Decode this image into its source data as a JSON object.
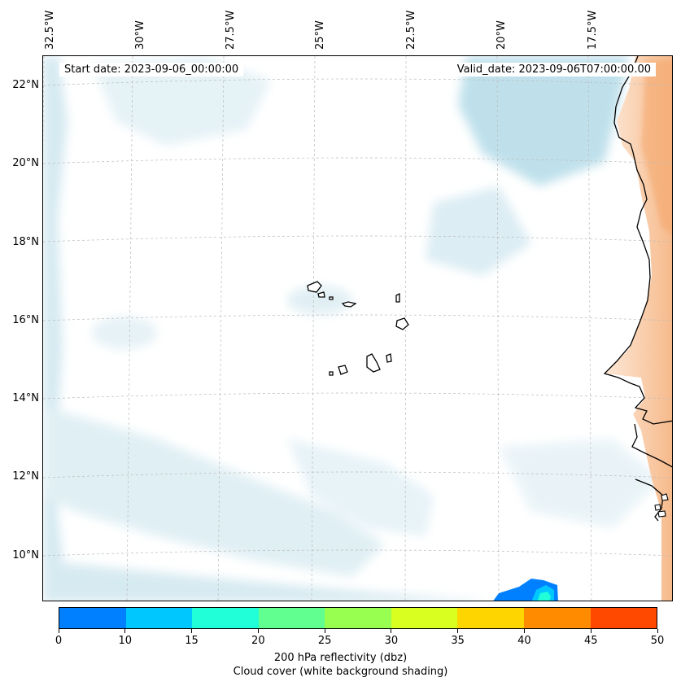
{
  "map": {
    "start_date": "Start date: 2023-09-06_00:00:00",
    "valid_date": "Valid_date: 2023-09-06T07:00:00.00",
    "lon_labels": [
      "32.5°W",
      "30°W",
      "27.5°W",
      "25°W",
      "22.5°W",
      "20°W",
      "17.5°W"
    ],
    "lat_labels": [
      "22°N",
      "20°N",
      "18°N",
      "16°N",
      "14°N",
      "12°N",
      "10°N"
    ],
    "colors": {
      "cloud": "#d2e8f0",
      "cloud_dense": "#a6d3e3",
      "land_heat": "#f7c79e",
      "land_heat_light": "#fbe3cf",
      "coastline": "#000000",
      "grid": "#bbbbbb"
    }
  },
  "colorbar": {
    "ticks": [
      "0",
      "10",
      "15",
      "20",
      "25",
      "30",
      "35",
      "40",
      "45",
      "50"
    ],
    "colors": [
      "#0080ff",
      "#00c8ff",
      "#20ffd8",
      "#60ff90",
      "#98ff50",
      "#d8ff20",
      "#ffd500",
      "#ff8c00",
      "#ff4800"
    ],
    "label_line1": "200 hPa reflectivity (dbz)",
    "label_line2": "Cloud cover (white background shading)"
  }
}
